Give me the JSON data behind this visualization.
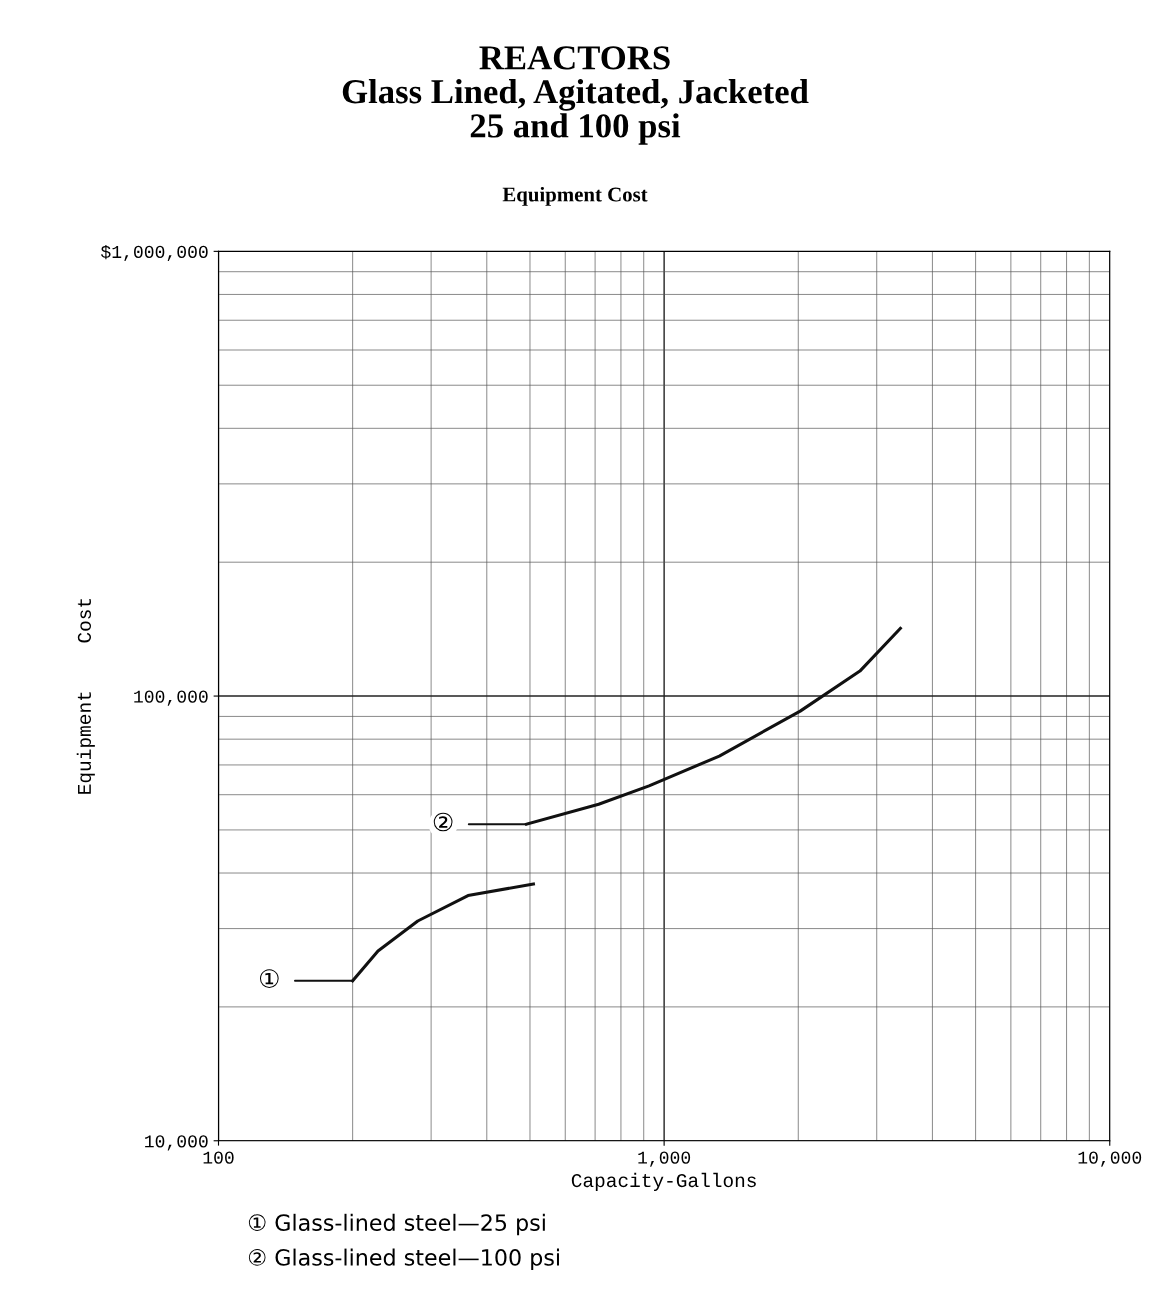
{
  "chart_data": {
    "type": "line",
    "title": "REACTORS\nGlass Lined, Agitated, Jacketed\n25 and 100 psi",
    "subtitle": "Equipment Cost",
    "xlabel": "Capacity-Gallons",
    "ylabel": "Equipment    Cost",
    "log": "xy",
    "xlim": [
      100,
      10000
    ],
    "ylim": [
      10000,
      1000000
    ],
    "xticks": [
      {
        "value": 100,
        "label": "100"
      },
      {
        "value": 1000,
        "label": "1,000"
      },
      {
        "value": 10000,
        "label": "10,000"
      }
    ],
    "yticks": [
      {
        "value": 10000,
        "label": "10,000"
      },
      {
        "value": 100000,
        "label": "100,000"
      },
      {
        "value": 1000000,
        "label": "$1,000,000"
      }
    ],
    "grid": true,
    "marker": "none",
    "line_style": "solid",
    "series": [
      {
        "color": "#111111",
        "x": [
          200,
          228,
          280,
          363,
          509
        ],
        "values": [
          22900,
          26700,
          31200,
          35600,
          37800
        ]
      },
      {
        "color": "#111111",
        "x": [
          491,
          713,
          925,
          1330,
          2020,
          2750,
          3390
        ],
        "values": [
          51500,
          57100,
          62800,
          73300,
          92500,
          113800,
          142000
        ]
      }
    ],
    "annotations": [
      {
        "text": "①",
        "x": 200,
        "y": 22900
      },
      {
        "text": "②",
        "x": 491,
        "y": 51500
      },
      "① Glass-lined steel—25 psi",
      "② Glass-lined steel—100 psi"
    ]
  }
}
